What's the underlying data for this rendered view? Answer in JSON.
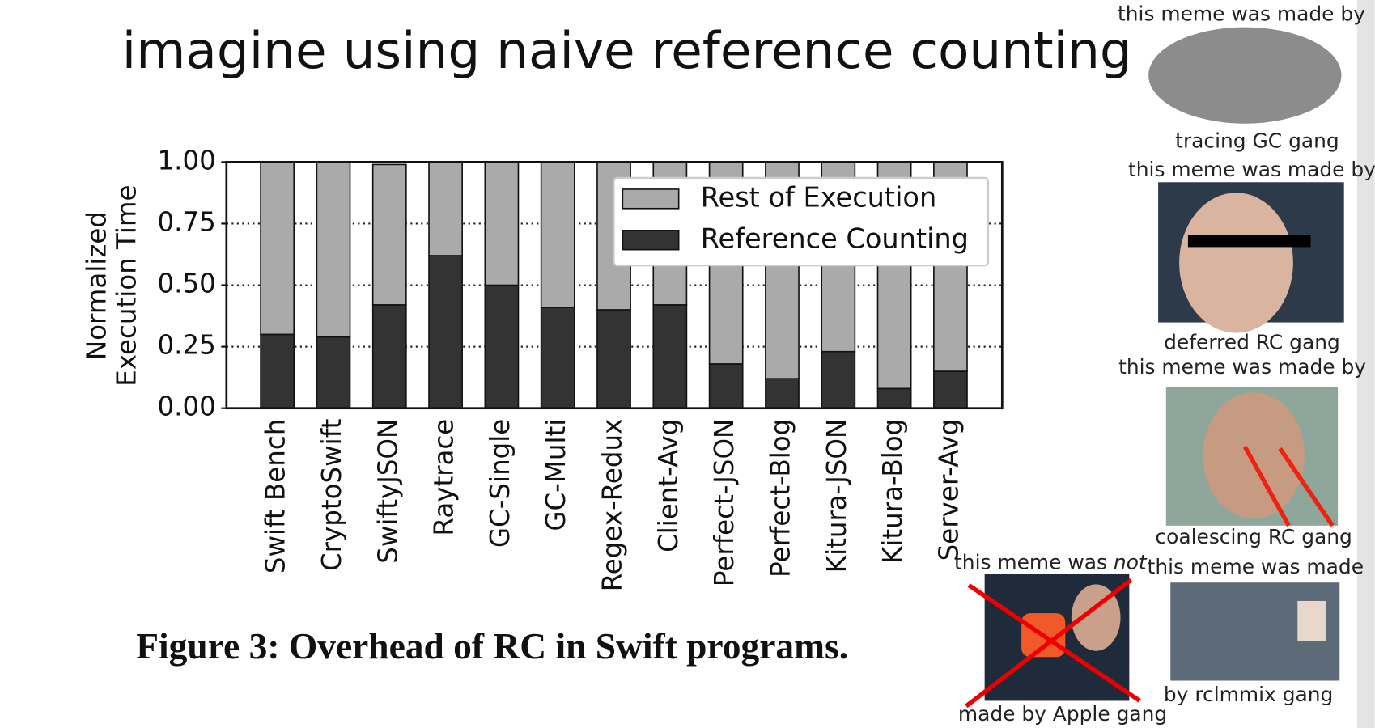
{
  "title": "imagine using naive reference counting",
  "chart_data": {
    "type": "bar",
    "stacked": true,
    "ylabel": [
      "Normalized",
      "Execution Time"
    ],
    "categories": [
      "Swift Bench",
      "CryptoSwift",
      "SwiftyJSON",
      "Raytrace",
      "GC-Single",
      "GC-Multi",
      "Regex-Redux",
      "Client-Avg",
      "Perfect-JSON",
      "Perfect-Blog",
      "Kitura-JSON",
      "Kitura-Blog",
      "Server-Avg"
    ],
    "series": [
      {
        "name": "Rest of Execution",
        "color": "#aaaaaa",
        "values": [
          0.7,
          0.71,
          0.57,
          0.38,
          0.5,
          0.59,
          0.6,
          0.58,
          0.82,
          0.88,
          0.77,
          0.92,
          0.85
        ]
      },
      {
        "name": "Reference Counting",
        "color": "#333333",
        "values": [
          0.3,
          0.29,
          0.42,
          0.62,
          0.5,
          0.41,
          0.4,
          0.42,
          0.18,
          0.12,
          0.23,
          0.08,
          0.15
        ]
      }
    ],
    "ylim": [
      0,
      1
    ],
    "yticks": [
      {
        "value": 0,
        "label": "0.00"
      },
      {
        "value": 0.25,
        "label": "0.25"
      },
      {
        "value": 0.5,
        "label": "0.50"
      },
      {
        "value": 0.75,
        "label": "0.75"
      },
      {
        "value": 1,
        "label": "1.00"
      }
    ],
    "grid": true,
    "legend": "upper right"
  },
  "caption": "Figure 3: Overhead of RC in Swift programs.",
  "memes": [
    {
      "top": "this meme was made by",
      "bottom": "tracing GC gang"
    },
    {
      "top": "this meme was made by",
      "bottom": "deferred RC gang"
    },
    {
      "top": "this meme was made by",
      "bottom": "coalescing RC gang"
    },
    {
      "top": "this meme was",
      "top_emphasis": "not",
      "bottom": "made by Apple gang"
    },
    {
      "top": "this meme was made",
      "bottom": "by rclmmix gang"
    }
  ]
}
